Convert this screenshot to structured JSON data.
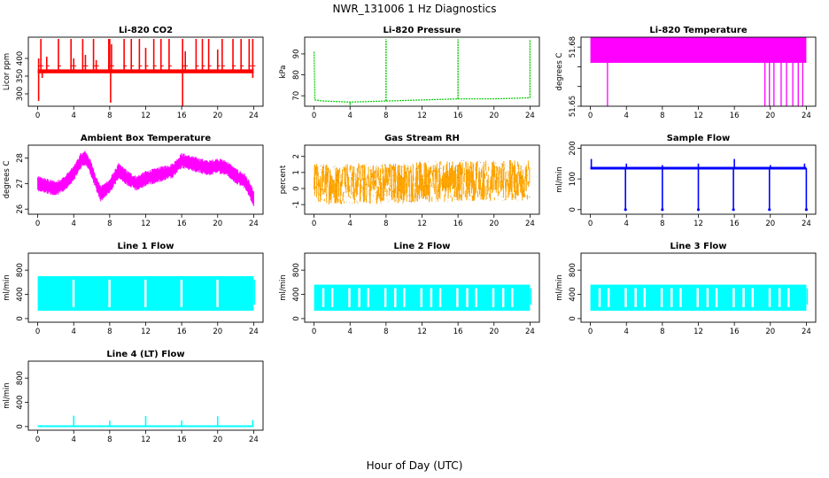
{
  "figure": {
    "title": "NWR_131006  1 Hz Diagnostics",
    "xlabel": "Hour of Day (UTC)"
  },
  "chart_data": [
    {
      "type": "line",
      "title": "Li-820 CO2",
      "ylabel": "Licor ppm",
      "xlim": [
        0,
        24
      ],
      "ylim": [
        265,
        460
      ],
      "xticks": [
        0,
        4,
        8,
        12,
        16,
        20,
        24
      ],
      "yticks": [
        300,
        350,
        400
      ],
      "color": "#ff0000",
      "baseline": 364,
      "band": [
        358,
        369
      ],
      "spikes_up": [
        [
          0.1,
          400
        ],
        [
          0.35,
          455
        ],
        [
          1.0,
          405
        ],
        [
          2.3,
          455
        ],
        [
          3.7,
          455
        ],
        [
          4.0,
          400
        ],
        [
          5.0,
          455
        ],
        [
          5.3,
          410
        ],
        [
          6.2,
          455
        ],
        [
          6.5,
          395
        ],
        [
          7.9,
          455
        ],
        [
          8.0,
          455
        ],
        [
          8.2,
          440
        ],
        [
          9.6,
          455
        ],
        [
          10.4,
          455
        ],
        [
          11.3,
          455
        ],
        [
          12.0,
          430
        ],
        [
          12.9,
          455
        ],
        [
          13.7,
          455
        ],
        [
          14.6,
          455
        ],
        [
          16.1,
          455
        ],
        [
          16.4,
          420
        ],
        [
          17.6,
          455
        ],
        [
          18.3,
          455
        ],
        [
          19.0,
          455
        ],
        [
          20.0,
          425
        ],
        [
          20.5,
          455
        ],
        [
          21.7,
          455
        ],
        [
          22.6,
          455
        ],
        [
          23.5,
          455
        ],
        [
          23.9,
          455
        ]
      ],
      "spikes_down": [
        [
          0.1,
          280
        ],
        [
          0.5,
          345
        ],
        [
          8.1,
          275
        ],
        [
          16.1,
          262
        ],
        [
          23.9,
          345
        ]
      ]
    },
    {
      "type": "line",
      "title": "Li-820 Pressure",
      "ylabel": "kPa",
      "xlim": [
        0,
        24
      ],
      "ylim": [
        65,
        98
      ],
      "xticks": [
        0,
        4,
        8,
        12,
        16,
        20,
        24
      ],
      "yticks": [
        70,
        80,
        90
      ],
      "color": "#00cc00",
      "base": [
        [
          0,
          91
        ],
        [
          0.1,
          68
        ],
        [
          1,
          67.5
        ],
        [
          4,
          67
        ],
        [
          8,
          67.5
        ],
        [
          12,
          68
        ],
        [
          16,
          68.5
        ],
        [
          20,
          68.5
        ],
        [
          24,
          69
        ]
      ],
      "spikes": [
        [
          8.0,
          97
        ],
        [
          16.0,
          97
        ],
        [
          24.0,
          97
        ]
      ],
      "dips": [
        [
          4.0,
          65.5
        ]
      ]
    },
    {
      "type": "area",
      "title": "Li-820 Temperature",
      "ylabel": "degrees C",
      "xlim": [
        0,
        24
      ],
      "ylim": [
        51.65,
        51.685
      ],
      "xticks": [
        0,
        4,
        8,
        12,
        16,
        20,
        24
      ],
      "yticks": [
        51.65,
        51.66,
        51.67,
        51.68
      ],
      "ytick_labels": [
        "51.65",
        "",
        "",
        "51.68"
      ],
      "color": "#ff00ff",
      "band": [
        51.672,
        51.685
      ],
      "dips": [
        [
          1.9,
          51.65
        ],
        [
          19.4,
          51.65
        ],
        [
          19.9,
          51.65
        ],
        [
          20.4,
          51.65
        ],
        [
          21.2,
          51.65
        ],
        [
          21.8,
          51.65
        ],
        [
          22.5,
          51.65
        ],
        [
          23.1,
          51.65
        ],
        [
          23.6,
          51.65
        ]
      ]
    },
    {
      "type": "line",
      "title": "Ambient Box Temperature",
      "ylabel": "degrees C",
      "xlim": [
        0,
        24
      ],
      "ylim": [
        25.8,
        28.5
      ],
      "xticks": [
        0,
        4,
        8,
        12,
        16,
        20,
        24
      ],
      "yticks": [
        26.0,
        27.0,
        28.0
      ],
      "color": "#ff00ff",
      "center": [
        [
          0,
          27.0
        ],
        [
          1,
          26.9
        ],
        [
          2,
          26.8
        ],
        [
          3,
          27.0
        ],
        [
          4,
          27.4
        ],
        [
          4.8,
          27.9
        ],
        [
          5.3,
          28.0
        ],
        [
          5.8,
          27.7
        ],
        [
          6.5,
          27.0
        ],
        [
          7.0,
          26.6
        ],
        [
          8,
          26.9
        ],
        [
          8.5,
          27.2
        ],
        [
          9,
          27.5
        ],
        [
          10,
          27.2
        ],
        [
          11,
          27.0
        ],
        [
          12,
          27.2
        ],
        [
          13,
          27.3
        ],
        [
          14,
          27.4
        ],
        [
          15,
          27.5
        ],
        [
          16,
          27.9
        ],
        [
          17,
          27.8
        ],
        [
          18,
          27.7
        ],
        [
          19,
          27.6
        ],
        [
          20,
          27.7
        ],
        [
          21,
          27.6
        ],
        [
          22,
          27.3
        ],
        [
          23,
          27.1
        ],
        [
          23.5,
          26.8
        ],
        [
          24,
          26.4
        ]
      ],
      "spread": 0.6
    },
    {
      "type": "scatter",
      "title": "Gas Stream RH",
      "ylabel": "percent",
      "xlim": [
        0,
        24
      ],
      "ylim": [
        -1.6,
        2.7
      ],
      "xticks": [
        0,
        4,
        8,
        12,
        16,
        20,
        24
      ],
      "yticks": [
        -1,
        0,
        1,
        2
      ],
      "color": "#ffa500",
      "edge_color": "#6a3a00",
      "center": [
        [
          0,
          0.3
        ],
        [
          6,
          0.3
        ],
        [
          12,
          0.4
        ],
        [
          18,
          0.5
        ],
        [
          24,
          0.5
        ]
      ],
      "spread": 1.6
    },
    {
      "type": "line",
      "title": "Sample Flow",
      "ylabel": "ml/min",
      "xlim": [
        0,
        24
      ],
      "ylim": [
        -15,
        210
      ],
      "xticks": [
        0,
        4,
        8,
        12,
        16,
        20,
        24
      ],
      "yticks": [
        0,
        100,
        200
      ],
      "color": "#0000ff",
      "baseline": 135,
      "spikes_up": [
        [
          0.1,
          165
        ],
        [
          4.0,
          150
        ],
        [
          8.0,
          145
        ],
        [
          12.0,
          150
        ],
        [
          16.0,
          165
        ],
        [
          20.0,
          145
        ],
        [
          23.8,
          150
        ]
      ],
      "spikes_down": [
        [
          3.9,
          0
        ],
        [
          8.0,
          0
        ],
        [
          12.0,
          0
        ],
        [
          15.9,
          0
        ],
        [
          19.9,
          0
        ],
        [
          24.0,
          0
        ]
      ]
    },
    {
      "type": "area",
      "title": "Line 1 Flow",
      "ylabel": "ml/min",
      "xlim": [
        0,
        24
      ],
      "ylim": [
        -60,
        1080
      ],
      "xticks": [
        0,
        4,
        8,
        12,
        16,
        20,
        24
      ],
      "yticks": [
        0,
        400,
        800
      ],
      "ytick_labels": [
        "0",
        "400",
        "800"
      ],
      "color": "#00ffff",
      "band": [
        130,
        700
      ],
      "gaps": [
        3.95,
        7.95,
        11.95,
        15.95,
        19.95
      ]
    },
    {
      "type": "area",
      "title": "Line 2 Flow",
      "ylabel": "ml/min",
      "xlim": [
        0,
        24
      ],
      "ylim": [
        -60,
        1080
      ],
      "xticks": [
        0,
        4,
        8,
        12,
        16,
        20,
        24
      ],
      "yticks": [
        0,
        400,
        800
      ],
      "ytick_labels": [
        "0",
        "400",
        "800"
      ],
      "color": "#00ffff",
      "band": [
        130,
        560
      ],
      "gaps": [
        1.0,
        2.0,
        3.9,
        5.0,
        6.0,
        7.9,
        9.0,
        10.0,
        11.9,
        13.0,
        14.0,
        15.9,
        17.0,
        18.0,
        19.9,
        21.0,
        22.0
      ]
    },
    {
      "type": "area",
      "title": "Line 3 Flow",
      "ylabel": "ml/min",
      "xlim": [
        0,
        24
      ],
      "ylim": [
        -60,
        1080
      ],
      "xticks": [
        0,
        4,
        8,
        12,
        16,
        20,
        24
      ],
      "yticks": [
        0,
        400,
        800
      ],
      "ytick_labels": [
        "0",
        "400",
        "800"
      ],
      "color": "#00ffff",
      "band": [
        130,
        560
      ],
      "gaps": [
        1.0,
        2.0,
        3.9,
        5.0,
        6.0,
        7.9,
        9.0,
        10.0,
        11.9,
        13.0,
        14.0,
        15.9,
        17.0,
        18.0,
        19.9,
        21.0,
        22.0
      ]
    },
    {
      "type": "line",
      "title": "Line 4 (LT) Flow",
      "ylabel": "ml/min",
      "xlim": [
        0,
        24
      ],
      "ylim": [
        -60,
        1080
      ],
      "xticks": [
        0,
        4,
        8,
        12,
        16,
        20,
        24
      ],
      "yticks": [
        0,
        400,
        800
      ],
      "ytick_labels": [
        "0",
        "400",
        "800"
      ],
      "color": "#00ffff",
      "baseline": 5,
      "spikes_up": [
        [
          4.0,
          180
        ],
        [
          8.0,
          100
        ],
        [
          12.0,
          175
        ],
        [
          16.0,
          100
        ],
        [
          20.0,
          170
        ],
        [
          23.9,
          110
        ]
      ]
    }
  ]
}
